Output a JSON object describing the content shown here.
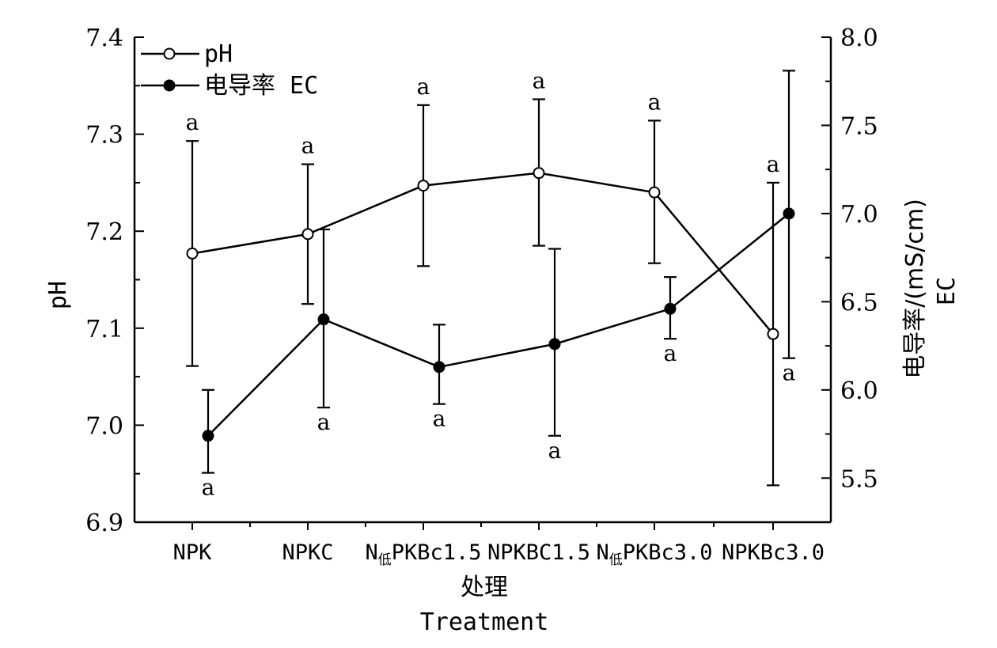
{
  "chart_data": {
    "type": "line",
    "categories": [
      "NPK",
      "NPKC",
      "N低PKBc1.5",
      "NPKBC1.5",
      "N低PKBc3.0",
      "NPKBc3.0"
    ],
    "category_labels": [
      {
        "main": "NPK",
        "sub": "",
        "rest": ""
      },
      {
        "main": "NPKC",
        "sub": "",
        "rest": ""
      },
      {
        "main": "N",
        "sub": "低",
        "rest": "PKBc1.5"
      },
      {
        "main": "NPKBC1.5",
        "sub": "",
        "rest": ""
      },
      {
        "main": "N",
        "sub": "低",
        "rest": "PKBc3.0"
      },
      {
        "main": "NPKBc3.0",
        "sub": "",
        "rest": ""
      }
    ],
    "xlabel_cn": "处理",
    "xlabel_en": "Treatment",
    "ylabel_left": "pH",
    "ylabel_right_cn": "电导率/(mS/cm)",
    "ylabel_right_en": "EC",
    "ylim_left": [
      6.9,
      7.4
    ],
    "yticks_left": [
      "6.9",
      "7.0",
      "7.1",
      "7.2",
      "7.3",
      "7.4"
    ],
    "ylim_right": [
      5.25,
      8.0
    ],
    "yticks_right": [
      "5.5",
      "6.0",
      "6.5",
      "7.0",
      "7.5",
      "8.0"
    ],
    "legend_position": "top-left",
    "series": [
      {
        "name": "pH",
        "axis": "left",
        "marker": "open-circle",
        "values": [
          7.177,
          7.197,
          7.247,
          7.26,
          7.24,
          7.094
        ],
        "err_low": [
          7.061,
          7.125,
          7.164,
          7.185,
          7.167,
          6.938
        ],
        "err_high": [
          7.293,
          7.269,
          7.33,
          7.336,
          7.314,
          7.25
        ],
        "labels": [
          "a",
          "a",
          "a",
          "a",
          "a",
          "a"
        ]
      },
      {
        "name": "电导率 EC",
        "axis": "right",
        "marker": "filled-circle",
        "values": [
          5.74,
          6.4,
          6.13,
          6.26,
          6.46,
          7.0
        ],
        "err_low": [
          5.53,
          5.9,
          5.92,
          5.74,
          6.29,
          6.18
        ],
        "err_high": [
          6.0,
          6.91,
          6.37,
          6.8,
          6.64,
          7.81
        ],
        "labels": [
          "a",
          "a",
          "a",
          "a",
          "a",
          "a"
        ]
      }
    ]
  }
}
